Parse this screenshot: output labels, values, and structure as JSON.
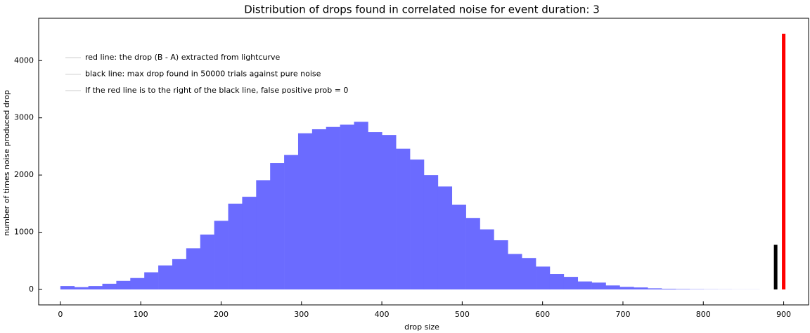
{
  "chart_data": {
    "type": "histogram",
    "title": "Distribution of drops found in correlated noise for event duration: 3",
    "xlabel": "drop size",
    "ylabel": "number of times noise produced drop",
    "bins": [
      0,
      17.4,
      34.8,
      52.2,
      69.6,
      87,
      104.4,
      121.8,
      139.2,
      156.6,
      174,
      191.4,
      208.8,
      226.2,
      243.6,
      261,
      278.4,
      295.8,
      313.2,
      330.6,
      348,
      365.4,
      382.8,
      400.2,
      417.6,
      435,
      452.4,
      469.8,
      487.2,
      504.6,
      522,
      539.4,
      556.8,
      574.2,
      591.6,
      609,
      626.4,
      643.8,
      661.2,
      678.6,
      696,
      713.4,
      730.8,
      748.2,
      765.6,
      783,
      800.4,
      817.8,
      835.2,
      852.6,
      870,
      887.4
    ],
    "values": [
      60,
      40,
      60,
      100,
      150,
      200,
      300,
      420,
      530,
      720,
      960,
      1200,
      1500,
      1620,
      1910,
      2210,
      2350,
      2730,
      2800,
      2840,
      2880,
      2930,
      2750,
      2700,
      2460,
      2270,
      2000,
      1800,
      1480,
      1250,
      1050,
      860,
      620,
      550,
      400,
      270,
      220,
      140,
      120,
      70,
      45,
      35,
      20,
      12,
      8,
      5,
      3,
      2,
      1,
      1,
      0
    ],
    "color": "#6b6bff",
    "markers": [
      {
        "x": 890,
        "value": 780,
        "color": "#000000"
      },
      {
        "x": 900,
        "value": 4470,
        "color": "#ff0000"
      }
    ],
    "legend": [
      "red line: the drop (B - A) extracted from lightcurve",
      "black line: max drop found in 50000 trials against pure noise",
      "If the red line is to the right of the black line, false positive prob = 0"
    ],
    "xlim": [
      -27,
      931
    ],
    "ylim": [
      -270,
      4740
    ],
    "xticks": [
      0,
      100,
      200,
      300,
      400,
      500,
      600,
      700,
      800,
      900
    ],
    "yticks": [
      0,
      1000,
      2000,
      3000,
      4000
    ]
  }
}
